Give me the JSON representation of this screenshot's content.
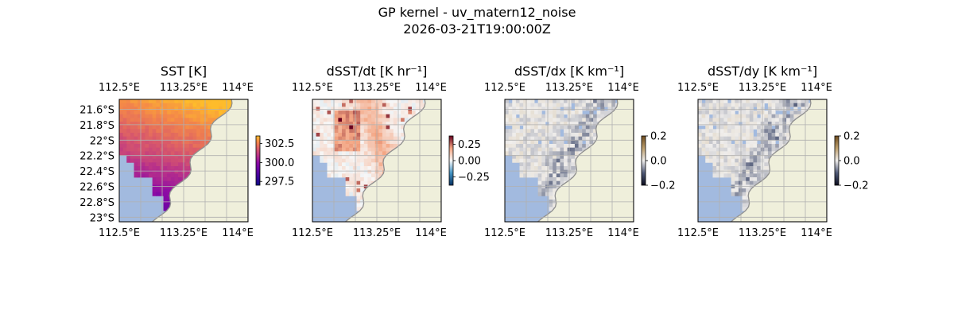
{
  "figure": {
    "title_line1": "GP kernel - uv_matern12_noise",
    "title_line2": "2026-03-21T19:00:00Z"
  },
  "colors": {
    "land": "#efefdb",
    "coast": "#8f8f8f",
    "ocean_mask": "#a2badf",
    "grid": "#b0b0b0"
  },
  "chart_data": [
    {
      "type": "heatmap",
      "title": "SST [K]",
      "x_ticks": [
        "112.5°E",
        "113.25°E",
        "114°E"
      ],
      "y_ticks": [
        "21.6°S",
        "21.8°S",
        "22°S",
        "22.2°S",
        "22.4°S",
        "22.6°S",
        "22.8°S",
        "23°S"
      ],
      "show_y_ticks": true,
      "xlim": [
        112.5,
        114.25
      ],
      "ylim": [
        -23.0,
        -21.45
      ],
      "colormap": "plasma-like",
      "colorbar": {
        "ticks": [
          "302.5",
          "300.0",
          "297.5"
        ],
        "range": [
          297.0,
          303.5
        ]
      },
      "field": "sst"
    },
    {
      "type": "heatmap",
      "title": "dSST/dt [K hr⁻¹]",
      "x_ticks": [
        "112.5°E",
        "113.25°E",
        "114°E"
      ],
      "show_y_ticks": false,
      "xlim": [
        112.5,
        114.25
      ],
      "ylim": [
        -23.0,
        -21.45
      ],
      "colormap": "diverging blue-white-red",
      "colorbar": {
        "ticks": [
          "0.25",
          "0.00",
          "−0.25"
        ],
        "range": [
          -0.38,
          0.38
        ]
      },
      "field": "dsst_dt"
    },
    {
      "type": "heatmap",
      "title": "dSST/dx [K km⁻¹]",
      "x_ticks": [
        "112.5°E",
        "113.25°E",
        "114°E"
      ],
      "show_y_ticks": false,
      "xlim": [
        112.5,
        114.25
      ],
      "ylim": [
        -23.0,
        -21.45
      ],
      "colormap": "diverging dark-blue-white-brown",
      "colorbar": {
        "ticks": [
          "0.2",
          "0.0",
          "−0.2"
        ],
        "range": [
          -0.2,
          0.2
        ]
      },
      "field": "dsst_dx"
    },
    {
      "type": "heatmap",
      "title": "dSST/dy [K km⁻¹]",
      "x_ticks": [
        "112.5°E",
        "113.25°E",
        "114°E"
      ],
      "show_y_ticks": false,
      "xlim": [
        112.5,
        114.25
      ],
      "ylim": [
        -23.0,
        -21.45
      ],
      "colormap": "diverging dark-blue-white-brown",
      "colorbar": {
        "ticks": [
          "0.2",
          "0.0",
          "−0.2"
        ],
        "range": [
          -0.2,
          0.2
        ]
      },
      "field": "dsst_dy"
    }
  ]
}
